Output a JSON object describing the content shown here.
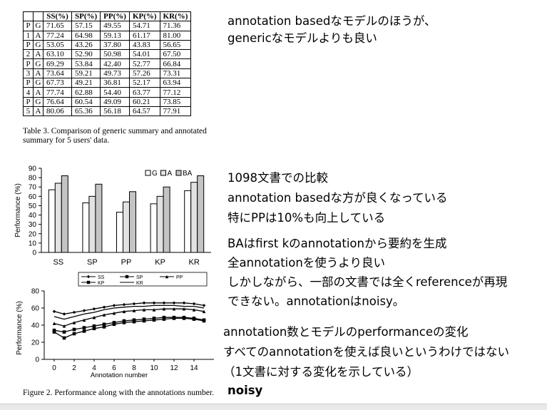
{
  "table": {
    "headers": [
      "",
      "",
      "SS(%)",
      "SP(%)",
      "PP(%)",
      "KP(%)",
      "KR(%)"
    ],
    "rows": [
      [
        "P",
        "G",
        "71.65",
        "57.15",
        "49.55",
        "54.71",
        "71.36"
      ],
      [
        "1",
        "A",
        "77.24",
        "64.98",
        "59.13",
        "61.17",
        "81.00"
      ],
      [
        "P",
        "G",
        "53.05",
        "43.26",
        "37.80",
        "43.83",
        "56.65"
      ],
      [
        "2",
        "A",
        "63.10",
        "52.90",
        "50.98",
        "54.01",
        "67.50"
      ],
      [
        "P",
        "G",
        "69.29",
        "53.84",
        "42.40",
        "52.77",
        "66.84"
      ],
      [
        "3",
        "A",
        "73.64",
        "59.21",
        "49.73",
        "57.26",
        "73.31"
      ],
      [
        "P",
        "G",
        "67.73",
        "49.21",
        "36.81",
        "52.17",
        "63.94"
      ],
      [
        "4",
        "A",
        "77.74",
        "62.88",
        "54.40",
        "63.77",
        "77.12"
      ],
      [
        "P",
        "G",
        "76.64",
        "60.54",
        "49.09",
        "60.21",
        "73.85"
      ],
      [
        "5",
        "A",
        "80.06",
        "65.36",
        "56.18",
        "64.57",
        "77.91"
      ]
    ],
    "caption": "Table 3. Comparison of generic summary and annotated summary for 5 users' data."
  },
  "figure": {
    "caption": "Figure 2. Performance along with the annotations number."
  },
  "notes": {
    "block1": [
      "annotation basedなモデルのほうが、",
      "genericなモデルよりも良い"
    ],
    "block2": [
      "1098文書での比較",
      "annotation basedな方が良くなっている",
      "特にPPは10%も向上している"
    ],
    "block3": [
      "BAはfirst kのannotationから要約を生成",
      "全annotationを使うより良い",
      "しかしながら、一部の文書では全くreferenceが再現",
      "できない。annotationはnoisy。"
    ],
    "block4": [
      "annotation数とモデルのperformanceの変化",
      "すべてのannotationを使えば良いというわけではない",
      "（1文書に対する変化を示している）"
    ],
    "block5": "noisy"
  },
  "chart_data": [
    {
      "type": "bar",
      "title": "",
      "xlabel": "",
      "ylabel": "Performance (%)",
      "ylim": [
        0,
        90
      ],
      "yticks": [
        "0",
        "10",
        "20",
        "30",
        "40",
        "50",
        "60",
        "70",
        "80",
        "90"
      ],
      "categories": [
        "SS",
        "SP",
        "PP",
        "KP",
        "KR"
      ],
      "legend_position": "top-right",
      "series": [
        {
          "name": "G",
          "values": [
            67,
            53,
            43,
            52,
            66
          ],
          "fill": "#ffffff"
        },
        {
          "name": "A",
          "values": [
            74,
            60,
            54,
            60,
            75
          ],
          "fill": "#e2e2e2"
        },
        {
          "name": "BA",
          "values": [
            82,
            73,
            65,
            70,
            82
          ],
          "fill": "#c4c4c4"
        }
      ]
    },
    {
      "type": "line",
      "title": "",
      "xlabel": "Annotation number",
      "ylabel": "Performance (%)",
      "ylim": [
        0,
        80
      ],
      "xlim": [
        -1,
        16
      ],
      "yticks": [
        "0",
        "20",
        "40",
        "60",
        "80"
      ],
      "xticks": [
        "0",
        "2",
        "4",
        "6",
        "8",
        "10",
        "12",
        "14"
      ],
      "legend_position": "top",
      "x": [
        0,
        1,
        2,
        3,
        4,
        5,
        6,
        7,
        8,
        9,
        10,
        11,
        12,
        13,
        14,
        15
      ],
      "series": [
        {
          "name": "SS",
          "marker": "diamond",
          "values": [
            56,
            53,
            55,
            57,
            59,
            61,
            63,
            64,
            65,
            66,
            66,
            66,
            66,
            66,
            65,
            63
          ]
        },
        {
          "name": "SP",
          "marker": "square",
          "values": [
            34,
            32,
            35,
            37,
            39,
            41,
            43,
            45,
            46,
            47,
            48,
            49,
            49,
            49,
            48,
            46
          ]
        },
        {
          "name": "PP",
          "marker": "triangle",
          "values": [
            42,
            39,
            43,
            46,
            49,
            52,
            54,
            56,
            57,
            58,
            58,
            59,
            59,
            59,
            58,
            56
          ]
        },
        {
          "name": "KP",
          "marker": "square",
          "values": [
            32,
            25,
            30,
            33,
            36,
            38,
            41,
            43,
            44,
            45,
            46,
            47,
            48,
            48,
            47,
            45
          ]
        },
        {
          "name": "KR",
          "marker": "none",
          "values": [
            50,
            47,
            50,
            53,
            55,
            58,
            60,
            61,
            62,
            62,
            63,
            63,
            63,
            62,
            62,
            60
          ]
        }
      ]
    }
  ]
}
